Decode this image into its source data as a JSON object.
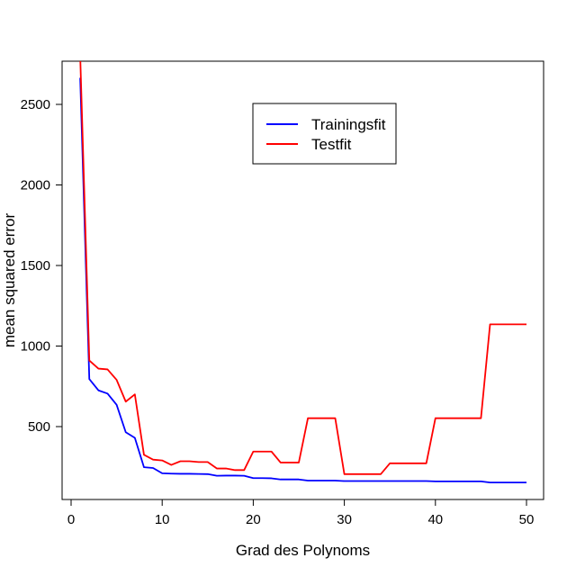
{
  "chart_data": {
    "type": "line",
    "title": "",
    "xlabel": "Grad des Polynoms",
    "ylabel": "mean squared error",
    "xlim": [
      0,
      50
    ],
    "ylim": [
      150,
      2750
    ],
    "xticks": [
      0,
      10,
      20,
      30,
      40,
      50
    ],
    "yticks": [
      500,
      1000,
      1500,
      2000,
      2500
    ],
    "grid": false,
    "legend_position": "top-center",
    "x": [
      1,
      2,
      3,
      4,
      5,
      6,
      7,
      8,
      9,
      10,
      11,
      12,
      13,
      14,
      15,
      16,
      17,
      18,
      19,
      20,
      21,
      22,
      23,
      24,
      25,
      26,
      27,
      28,
      29,
      30,
      31,
      32,
      33,
      34,
      35,
      36,
      37,
      38,
      39,
      40,
      41,
      42,
      43,
      44,
      45,
      46,
      47,
      48,
      49,
      50
    ],
    "series": [
      {
        "name": "Trainingsfit",
        "color": "#0000ff",
        "values": [
          2665,
          795,
          725,
          705,
          635,
          465,
          430,
          248,
          243,
          210,
          208,
          207,
          207,
          206,
          205,
          195,
          196,
          196,
          195,
          180,
          180,
          179,
          172,
          172,
          172,
          165,
          165,
          165,
          165,
          162,
          162,
          162,
          162,
          162,
          162,
          162,
          162,
          162,
          162,
          160,
          160,
          160,
          160,
          160,
          160,
          153,
          153,
          153,
          153,
          153
        ]
      },
      {
        "name": "Testfit",
        "color": "#ff0000",
        "values": [
          2800,
          910,
          860,
          855,
          790,
          655,
          700,
          325,
          295,
          290,
          262,
          285,
          285,
          280,
          280,
          240,
          240,
          230,
          230,
          345,
          345,
          345,
          277,
          277,
          277,
          552,
          552,
          552,
          552,
          205,
          205,
          205,
          205,
          205,
          272,
          272,
          272,
          272,
          272,
          552,
          552,
          552,
          552,
          552,
          552,
          1135,
          1135,
          1135,
          1135,
          1135
        ]
      }
    ]
  }
}
